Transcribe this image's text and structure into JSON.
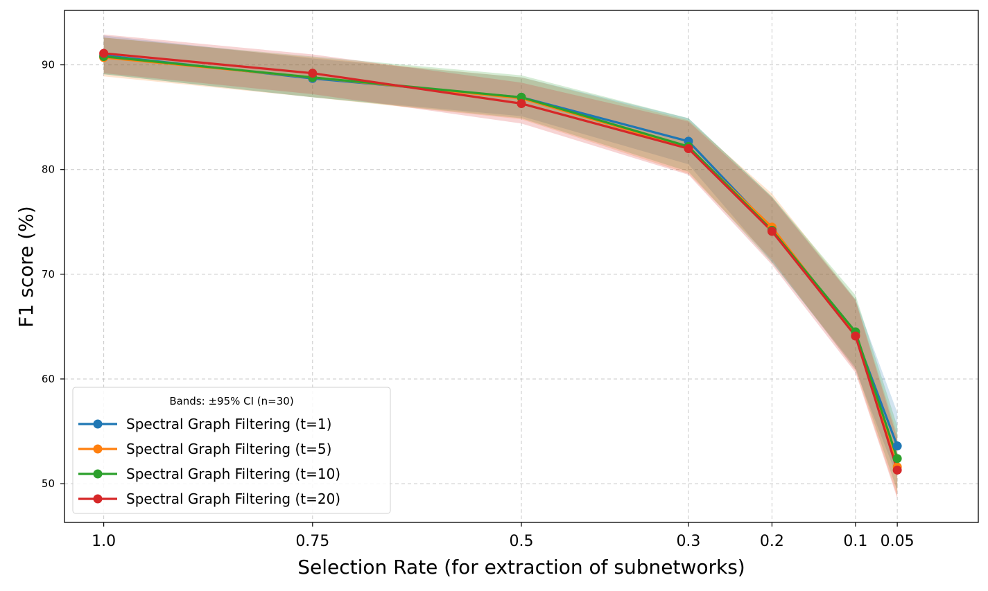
{
  "chart_data": {
    "type": "line",
    "title": "",
    "xlabel": "Selection Rate (for extraction of subnetworks)",
    "ylabel": "F1 score (%)",
    "categories": [
      "1.0",
      "0.75",
      "0.5",
      "0.3",
      "0.2",
      "0.1",
      "0.05"
    ],
    "x": [
      1.0,
      0.75,
      0.5,
      0.3,
      0.2,
      0.1,
      0.05
    ],
    "xlim": [
      1.047,
      -0.047
    ],
    "ylim": [
      46.3,
      95.2
    ],
    "yticks": [
      50,
      60,
      70,
      80,
      90
    ],
    "grid": true,
    "legend": {
      "title": "Bands: ±95% CI (n=30)",
      "placement": "lower-left"
    },
    "series": [
      {
        "name": "Spectral Graph Filtering (t=1)",
        "color": "#1f77b4",
        "values": [
          90.9,
          88.7,
          86.9,
          82.7,
          74.3,
          64.2,
          53.6
        ],
        "lower": [
          89.1,
          86.9,
          85.1,
          80.5,
          71.2,
          60.9,
          50.6
        ],
        "upper": [
          92.8,
          90.6,
          88.8,
          84.9,
          77.4,
          67.6,
          56.8
        ]
      },
      {
        "name": "Spectral Graph Filtering (t=5)",
        "color": "#ff7f0e",
        "values": [
          90.7,
          88.8,
          86.8,
          82.1,
          74.5,
          64.2,
          51.6
        ],
        "lower": [
          88.9,
          86.9,
          84.8,
          79.6,
          71.4,
          60.8,
          48.8
        ],
        "upper": [
          92.6,
          90.7,
          88.8,
          84.7,
          77.7,
          67.6,
          54.7
        ]
      },
      {
        "name": "Spectral Graph Filtering (t=10)",
        "color": "#2ca02c",
        "values": [
          90.8,
          88.8,
          86.9,
          82.2,
          74.2,
          64.5,
          52.4
        ],
        "lower": [
          89.1,
          86.9,
          84.9,
          79.8,
          71.1,
          61.1,
          49.3
        ],
        "upper": [
          92.6,
          90.8,
          89.0,
          84.9,
          77.4,
          68.0,
          55.5
        ]
      },
      {
        "name": "Spectral Graph Filtering (t=20)",
        "color": "#d62728",
        "values": [
          91.1,
          89.2,
          86.3,
          82.0,
          74.1,
          64.1,
          51.3
        ],
        "lower": [
          89.2,
          87.2,
          84.4,
          79.5,
          70.9,
          60.6,
          48.6
        ],
        "upper": [
          92.9,
          91.0,
          88.3,
          84.6,
          77.3,
          67.5,
          54.3
        ]
      }
    ]
  }
}
